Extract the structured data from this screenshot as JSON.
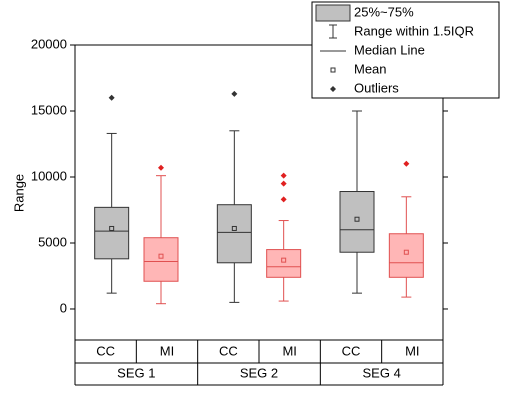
{
  "chart_data": {
    "type": "box",
    "y_label": "Range",
    "ylim": [
      -2350,
      20000
    ],
    "yticks": [
      0,
      5000,
      10000,
      15000,
      20000
    ],
    "groups": [
      "SEG 1",
      "SEG 2",
      "SEG 4"
    ],
    "legend": [
      "25%~75%",
      "Range within 1.5IQR",
      "Median Line",
      "Mean",
      "Outliers"
    ],
    "series": [
      {
        "name": "CC",
        "color": "#c0c0c0",
        "stroke": "#333333",
        "outlier_color": "#333333",
        "boxes": [
          {
            "low": 1200,
            "q1": 3800,
            "median": 5900,
            "q3": 7700,
            "high": 13300,
            "mean": 6100,
            "outliers": [
              16000
            ]
          },
          {
            "low": 500,
            "q1": 3500,
            "median": 5800,
            "q3": 7900,
            "high": 13500,
            "mean": 6100,
            "outliers": [
              16300
            ]
          },
          {
            "low": 1200,
            "q1": 4300,
            "median": 6000,
            "q3": 8900,
            "high": 15000,
            "mean": 6800,
            "outliers": []
          }
        ]
      },
      {
        "name": "MI",
        "color": "#ffb6b6",
        "stroke": "#e05050",
        "outlier_color": "#e02020",
        "boxes": [
          {
            "low": 400,
            "q1": 2100,
            "median": 3600,
            "q3": 5400,
            "high": 10100,
            "mean": 4000,
            "outliers": [
              10700
            ]
          },
          {
            "low": 600,
            "q1": 2400,
            "median": 3200,
            "q3": 4500,
            "high": 6700,
            "mean": 3700,
            "outliers": [
              8300,
              9500,
              10100
            ]
          },
          {
            "low": 900,
            "q1": 2400,
            "median": 3500,
            "q3": 5700,
            "high": 8500,
            "mean": 4300,
            "outliers": [
              11000
            ]
          }
        ]
      }
    ]
  }
}
